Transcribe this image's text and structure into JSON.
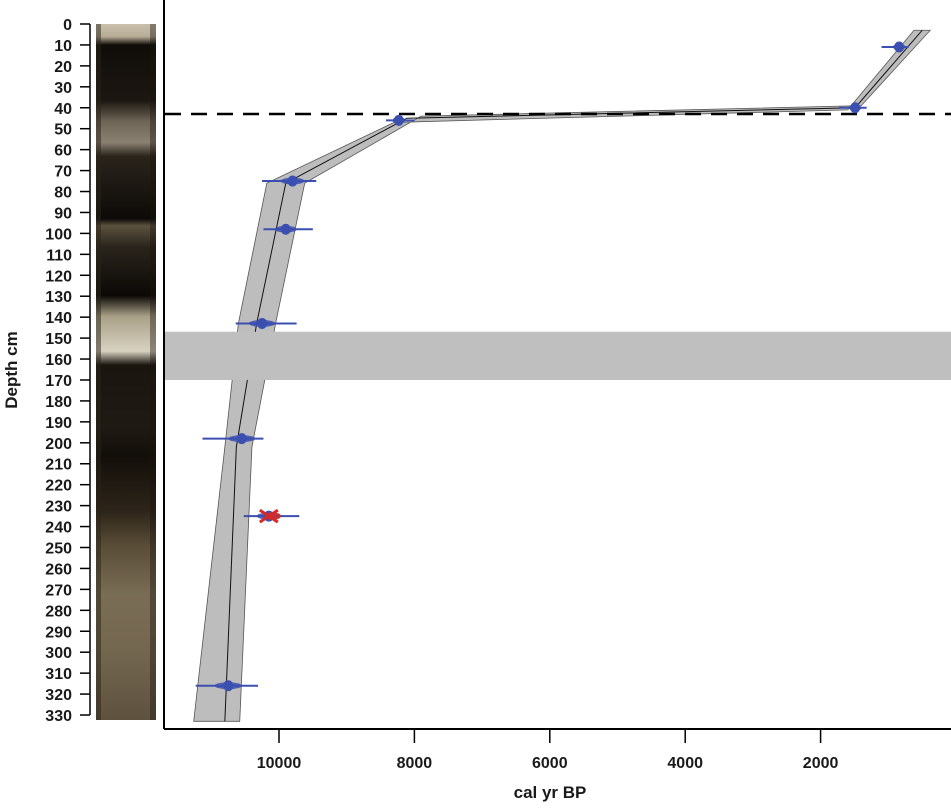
{
  "chart_data": {
    "type": "line",
    "subtype": "age-depth model",
    "title": "",
    "xlabel": "cal yr BP",
    "ylabel": "Depth cm",
    "x_axis": {
      "reversed": true,
      "ticks": [
        10000,
        8000,
        6000,
        4000,
        2000
      ],
      "tick_labels": [
        "10000",
        "8000",
        "6000",
        "4000",
        "2000"
      ],
      "range": [
        11700,
        300
      ]
    },
    "y_axis": {
      "reversed": true,
      "ticks": [
        0,
        10,
        20,
        30,
        40,
        50,
        60,
        70,
        80,
        90,
        100,
        110,
        120,
        130,
        140,
        150,
        160,
        170,
        180,
        190,
        200,
        210,
        220,
        230,
        240,
        250,
        260,
        270,
        280,
        290,
        300,
        310,
        320,
        330
      ],
      "tick_labels": [
        "0",
        "10",
        "20",
        "30",
        "40",
        "50",
        "60",
        "70",
        "80",
        "90",
        "100",
        "110",
        "120",
        "130",
        "140",
        "150",
        "160",
        "170",
        "180",
        "190",
        "200",
        "210",
        "220",
        "230",
        "240",
        "250",
        "260",
        "270",
        "280",
        "290",
        "300",
        "310",
        "320",
        "330"
      ],
      "range": [
        0,
        335
      ]
    },
    "grid": false,
    "legend": null,
    "dated_samples": [
      {
        "depth": 11,
        "age": 840,
        "age_min": 700,
        "age_max": 1100,
        "color": "#3b4fb0",
        "status": "accepted"
      },
      {
        "depth": 40,
        "age": 1490,
        "age_min": 1320,
        "age_max": 1730,
        "color": "#3b4fb0",
        "status": "accepted"
      },
      {
        "depth": 46,
        "age": 8230,
        "age_min": 8000,
        "age_max": 8420,
        "color": "#3b4fb0",
        "status": "accepted"
      },
      {
        "depth": 75,
        "age": 9800,
        "age_min": 9450,
        "age_max": 10250,
        "color": "#3b4fb0",
        "status": "accepted"
      },
      {
        "depth": 98,
        "age": 9900,
        "age_min": 9500,
        "age_max": 10230,
        "color": "#3b4fb0",
        "status": "accepted"
      },
      {
        "depth": 143,
        "age": 10250,
        "age_min": 9740,
        "age_max": 10640,
        "color": "#3b4fb0",
        "status": "accepted"
      },
      {
        "depth": 198,
        "age": 10550,
        "age_min": 10230,
        "age_max": 11130,
        "color": "#3b4fb0",
        "status": "accepted"
      },
      {
        "depth": 235,
        "age": 10150,
        "age_min": 9700,
        "age_max": 10520,
        "color": "#d42a2a",
        "status": "outlier"
      },
      {
        "depth": 316,
        "age": 10750,
        "age_min": 10310,
        "age_max": 11230,
        "color": "#3b4fb0",
        "status": "accepted"
      }
    ],
    "model_median": [
      {
        "depth": 3,
        "age": 500
      },
      {
        "depth": 40,
        "age": 1490
      },
      {
        "depth": 45,
        "age": 8110
      },
      {
        "depth": 76,
        "age": 9900
      },
      {
        "depth": 143,
        "age": 10330
      },
      {
        "depth": 202,
        "age": 10630
      },
      {
        "depth": 333,
        "age": 10800
      }
    ],
    "model_envelope": {
      "older_bound": [
        {
          "depth": 3,
          "age": 620
        },
        {
          "depth": 41,
          "age": 1600
        },
        {
          "depth": 47,
          "age": 8300
        },
        {
          "depth": 76,
          "age": 10180
        },
        {
          "depth": 143,
          "age": 10600
        },
        {
          "depth": 202,
          "age": 10800
        },
        {
          "depth": 333,
          "age": 11260
        }
      ],
      "younger_bound": [
        {
          "depth": 3,
          "age": 380
        },
        {
          "depth": 39,
          "age": 1400
        },
        {
          "depth": 44,
          "age": 7900
        },
        {
          "depth": 76,
          "age": 9620
        },
        {
          "depth": 143,
          "age": 10050
        },
        {
          "depth": 202,
          "age": 10400
        },
        {
          "depth": 333,
          "age": 10580
        }
      ],
      "color": "#bdbdbd"
    },
    "annotations": [
      {
        "type": "hline",
        "depth": 43,
        "style": "dashed",
        "color": "#000000"
      },
      {
        "type": "hband",
        "depth_from": 147,
        "depth_to": 170,
        "color": "#bfbfbf",
        "label": ""
      }
    ],
    "core_image": {
      "description": "sediment core photograph alongside depth axis",
      "depth_from": 0,
      "depth_to": 333
    }
  },
  "axes": {
    "xlabel": "cal yr BP",
    "ylabel": "Depth cm"
  }
}
